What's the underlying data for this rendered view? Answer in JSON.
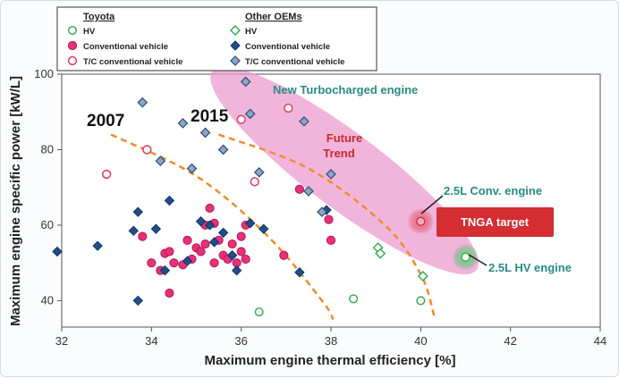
{
  "chart_data": {
    "type": "scatter",
    "xlabel": "Maximum engine thermal efficiency [%]",
    "ylabel": "Maximum engine specific power [kW/L]",
    "xlim": [
      32,
      44
    ],
    "ylim": [
      33,
      100
    ],
    "x_ticks": [
      32,
      34,
      36,
      38,
      40,
      42,
      44
    ],
    "y_ticks": [
      40,
      60,
      80,
      100
    ],
    "legend": {
      "location": "top-left",
      "group_titles": [
        "Toyota",
        "Other OEMs"
      ],
      "toyota": [
        {
          "key": "toyota_hv",
          "label": "HV"
        },
        {
          "key": "toyota_conv",
          "label": "Conventional vehicle"
        },
        {
          "key": "toyota_tc",
          "label": "T/C conventional vehicle"
        }
      ],
      "other": [
        {
          "key": "other_hv",
          "label": "HV"
        },
        {
          "key": "other_conv",
          "label": "Conventional vehicle"
        },
        {
          "key": "other_tc",
          "label": "T/C conventional vehicle"
        }
      ]
    },
    "colors": {
      "green": "#2fa84f",
      "pink": "#e8307a",
      "pink_edge": "#b01a55",
      "tc_edge": "#d94565",
      "navy": "#1f4f8a",
      "steel": "#8da6c4",
      "steel_edge": "#2c4e78",
      "orange": "#f08c2a",
      "band": "#ec9cd0",
      "red_box": "#d42d32",
      "teal": "#2a8a86"
    },
    "series": [
      {
        "name": "Toyota HV",
        "key": "toyota_hv",
        "points": [
          [
            36.4,
            37
          ],
          [
            38.5,
            40.5
          ],
          [
            40,
            40
          ]
        ]
      },
      {
        "name": "Toyota Conventional vehicle",
        "key": "toyota_conv",
        "points": [
          [
            33.8,
            57
          ],
          [
            34,
            50
          ],
          [
            34.2,
            48
          ],
          [
            34.3,
            52.5
          ],
          [
            34.4,
            53
          ],
          [
            34.5,
            50
          ],
          [
            34.7,
            49.5
          ],
          [
            34.8,
            56
          ],
          [
            34.9,
            51
          ],
          [
            35,
            54
          ],
          [
            35.1,
            53
          ],
          [
            35.2,
            55
          ],
          [
            35.2,
            60
          ],
          [
            35.3,
            64.5
          ],
          [
            35.4,
            50
          ],
          [
            35.5,
            56
          ],
          [
            35.6,
            52
          ],
          [
            35.7,
            51
          ],
          [
            35.8,
            55
          ],
          [
            35.9,
            50
          ],
          [
            36,
            57
          ],
          [
            36,
            53
          ],
          [
            36.1,
            60
          ],
          [
            36.1,
            51
          ],
          [
            35.4,
            60.5
          ],
          [
            36.95,
            52
          ],
          [
            37.3,
            69.5
          ],
          [
            37.95,
            61.5
          ],
          [
            38,
            56
          ],
          [
            34.4,
            42
          ]
        ]
      },
      {
        "name": "Toyota T/C conventional vehicle",
        "key": "toyota_tc",
        "points": [
          [
            33,
            73.5
          ],
          [
            33.9,
            80
          ],
          [
            36,
            88
          ],
          [
            36.3,
            71.5
          ],
          [
            37.05,
            91
          ],
          [
            40,
            61
          ]
        ]
      },
      {
        "name": "Other OEMs HV",
        "key": "other_hv",
        "points": [
          [
            39.05,
            54
          ],
          [
            39.1,
            52.5
          ],
          [
            40.05,
            46.5
          ]
        ]
      },
      {
        "name": "Other OEMs Conventional vehicle",
        "key": "other_conv",
        "points": [
          [
            31.9,
            53
          ],
          [
            32.8,
            54.5
          ],
          [
            33.6,
            58.5
          ],
          [
            33.7,
            63.5
          ],
          [
            33.7,
            40
          ],
          [
            34.1,
            59
          ],
          [
            34.3,
            48
          ],
          [
            34.4,
            66.5
          ],
          [
            34.8,
            50.5
          ],
          [
            35.1,
            61
          ],
          [
            35.3,
            60
          ],
          [
            35.4,
            55.5
          ],
          [
            35.6,
            58
          ],
          [
            35.8,
            52
          ],
          [
            35.9,
            48
          ],
          [
            36.2,
            60.5
          ],
          [
            36.5,
            59
          ],
          [
            37.3,
            47.5
          ],
          [
            37.9,
            64
          ]
        ]
      },
      {
        "name": "Other OEMs T/C conventional vehicle",
        "key": "other_tc",
        "points": [
          [
            33.8,
            92.5
          ],
          [
            34.2,
            77
          ],
          [
            34.7,
            87
          ],
          [
            34.9,
            75
          ],
          [
            35.2,
            84.5
          ],
          [
            35.6,
            80
          ],
          [
            36.1,
            98
          ],
          [
            36.2,
            89.5
          ],
          [
            36.4,
            74
          ],
          [
            37.4,
            87.5
          ],
          [
            37.5,
            69
          ],
          [
            37.8,
            63.5
          ],
          [
            38,
            73.5
          ]
        ]
      }
    ],
    "trend_lines": [
      {
        "label": "2007",
        "points": [
          [
            33.1,
            84
          ],
          [
            35,
            73
          ],
          [
            36.6,
            57
          ],
          [
            37.8,
            40
          ],
          [
            38.05,
            35
          ]
        ]
      },
      {
        "label": "2015",
        "points": [
          [
            35.5,
            84
          ],
          [
            37.5,
            75
          ],
          [
            39.2,
            60
          ],
          [
            40,
            47
          ],
          [
            40.3,
            36
          ]
        ]
      }
    ],
    "annotations": {
      "new_turbo": "New Turbocharged engine",
      "future_trend_l1": "Future",
      "future_trend_l2": "Trend",
      "conv_engine": "2.5L Conv. engine",
      "tnga_target": "TNGA target",
      "hv_engine": "2.5L HV engine",
      "conv_engine_point": [
        40,
        61
      ],
      "hv_engine_point": [
        41,
        51.5
      ],
      "future_band_center": [
        38.3,
        74.5
      ]
    }
  }
}
